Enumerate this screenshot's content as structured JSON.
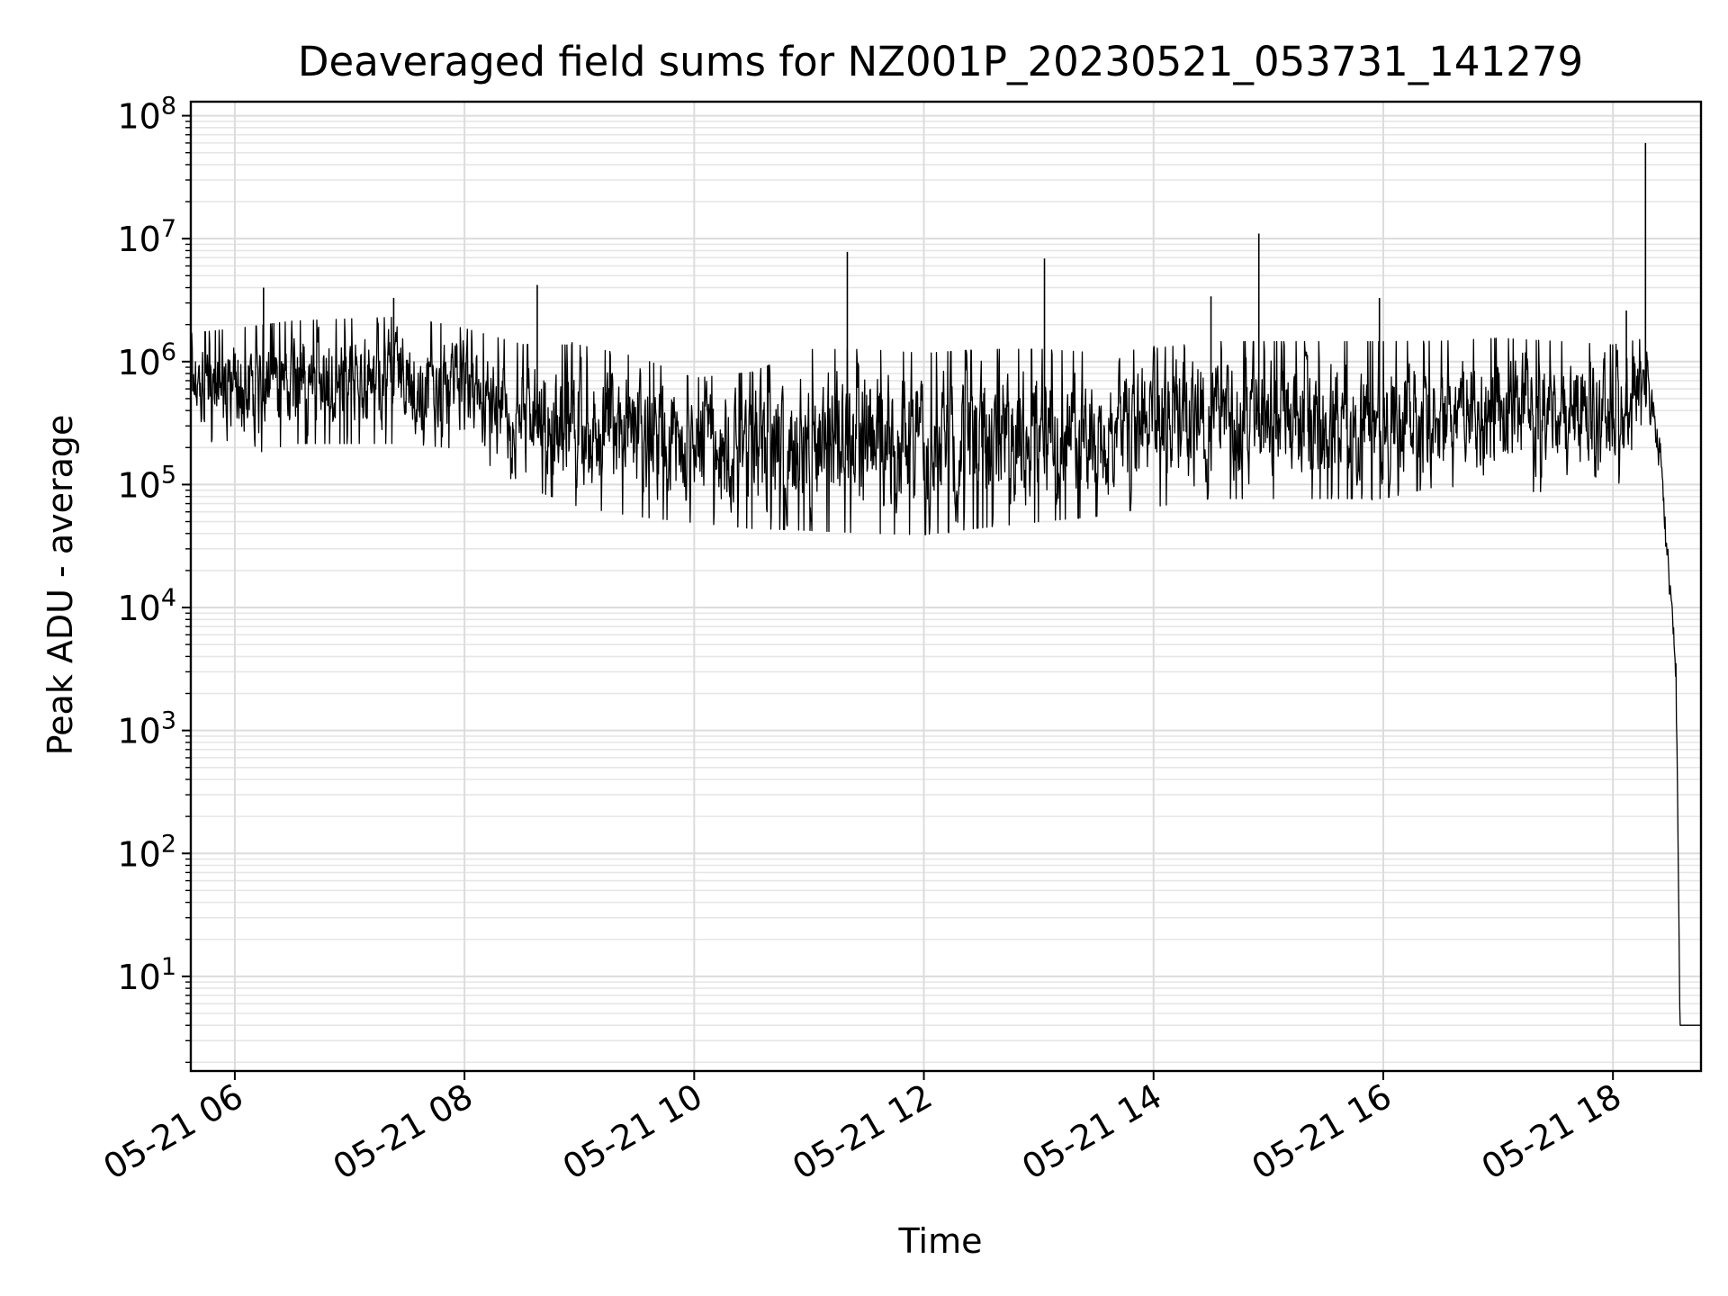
{
  "chart_data": {
    "type": "line",
    "title": "Deaveraged field sums for NZ001P_20230521_053731_141279",
    "xlabel": "Time",
    "ylabel": "Peak ADU - average",
    "yscale": "log",
    "ylim": [
      1.7,
      130000000
    ],
    "xlim": [
      "2023-05-21 05:37",
      "2023-05-21 18:46"
    ],
    "grid": true,
    "x_ticks": [
      {
        "value": "2023-05-21 06:00",
        "label": "05-21 06"
      },
      {
        "value": "2023-05-21 08:00",
        "label": "05-21 08"
      },
      {
        "value": "2023-05-21 10:00",
        "label": "05-21 10"
      },
      {
        "value": "2023-05-21 12:00",
        "label": "05-21 12"
      },
      {
        "value": "2023-05-21 14:00",
        "label": "05-21 14"
      },
      {
        "value": "2023-05-21 16:00",
        "label": "05-21 16"
      },
      {
        "value": "2023-05-21 18:00",
        "label": "05-21 18"
      }
    ],
    "y_ticks": [
      {
        "value": 10,
        "base": "10",
        "exp": "1"
      },
      {
        "value": 100,
        "base": "10",
        "exp": "2"
      },
      {
        "value": 1000,
        "base": "10",
        "exp": "3"
      },
      {
        "value": 10000,
        "base": "10",
        "exp": "4"
      },
      {
        "value": 100000,
        "base": "10",
        "exp": "5"
      },
      {
        "value": 1000000,
        "base": "10",
        "exp": "6"
      },
      {
        "value": 10000000,
        "base": "10",
        "exp": "7"
      },
      {
        "value": 100000000,
        "base": "10",
        "exp": "8"
      }
    ],
    "series": [
      {
        "color": "#000000",
        "envelope": [
          {
            "x": "2023-05-21 05:37",
            "high": 1800000,
            "low": 280000
          },
          {
            "x": "2023-05-21 06:00",
            "high": 2000000,
            "low": 150000
          },
          {
            "x": "2023-05-21 06:30",
            "high": 2300000,
            "low": 200000
          },
          {
            "x": "2023-05-21 07:00",
            "high": 2400000,
            "low": 200000
          },
          {
            "x": "2023-05-21 07:30",
            "high": 2500000,
            "low": 200000
          },
          {
            "x": "2023-05-21 08:00",
            "high": 2000000,
            "low": 180000
          },
          {
            "x": "2023-05-21 08:30",
            "high": 1500000,
            "low": 90000
          },
          {
            "x": "2023-05-21 09:00",
            "high": 1500000,
            "low": 60000
          },
          {
            "x": "2023-05-21 09:30",
            "high": 1200000,
            "low": 50000
          },
          {
            "x": "2023-05-21 10:00",
            "high": 800000,
            "low": 45000
          },
          {
            "x": "2023-05-21 10:30",
            "high": 900000,
            "low": 40000
          },
          {
            "x": "2023-05-21 11:00",
            "high": 1400000,
            "low": 38000
          },
          {
            "x": "2023-05-21 11:30",
            "high": 1400000,
            "low": 36000
          },
          {
            "x": "2023-05-21 12:00",
            "high": 1300000,
            "low": 35000
          },
          {
            "x": "2023-05-21 12:30",
            "high": 1400000,
            "low": 40000
          },
          {
            "x": "2023-05-21 13:00",
            "high": 1400000,
            "low": 45000
          },
          {
            "x": "2023-05-21 13:30",
            "high": 1300000,
            "low": 50000
          },
          {
            "x": "2023-05-21 14:00",
            "high": 1400000,
            "low": 60000
          },
          {
            "x": "2023-05-21 14:30",
            "high": 1600000,
            "low": 70000
          },
          {
            "x": "2023-05-21 15:00",
            "high": 1600000,
            "low": 70000
          },
          {
            "x": "2023-05-21 15:30",
            "high": 1600000,
            "low": 70000
          },
          {
            "x": "2023-05-21 16:00",
            "high": 1600000,
            "low": 70000
          },
          {
            "x": "2023-05-21 16:30",
            "high": 1600000,
            "low": 90000
          },
          {
            "x": "2023-05-21 17:00",
            "high": 1700000,
            "low": 80000
          },
          {
            "x": "2023-05-21 17:30",
            "high": 1600000,
            "low": 80000
          },
          {
            "x": "2023-05-21 18:00",
            "high": 1500000,
            "low": 70000
          },
          {
            "x": "2023-05-21 18:15",
            "high": 1600000,
            "low": 300000
          },
          {
            "x": "2023-05-21 18:20",
            "high": 1000000,
            "low": 300000
          },
          {
            "x": "2023-05-21 18:26",
            "high": 200000,
            "low": 60000
          },
          {
            "x": "2023-05-21 18:30",
            "high": 20000,
            "low": 10000
          },
          {
            "x": "2023-05-21 18:33",
            "high": 5000,
            "low": 2000
          },
          {
            "x": "2023-05-21 18:35",
            "high": 4,
            "low": 4
          },
          {
            "x": "2023-05-21 18:46",
            "high": 4,
            "low": 4
          }
        ],
        "spikes": [
          {
            "x": "2023-05-21 05:37",
            "y": 1800000
          },
          {
            "x": "2023-05-21 06:15",
            "y": 4000000
          },
          {
            "x": "2023-05-21 07:23",
            "y": 3300000
          },
          {
            "x": "2023-05-21 08:38",
            "y": 4200000
          },
          {
            "x": "2023-05-21 11:20",
            "y": 7800000
          },
          {
            "x": "2023-05-21 13:03",
            "y": 6900000
          },
          {
            "x": "2023-05-21 14:30",
            "y": 3400000
          },
          {
            "x": "2023-05-21 14:55",
            "y": 11000000
          },
          {
            "x": "2023-05-21 15:58",
            "y": 3300000
          },
          {
            "x": "2023-05-21 18:07",
            "y": 2600000
          },
          {
            "x": "2023-05-21 18:17",
            "y": 60000000
          }
        ]
      }
    ]
  }
}
